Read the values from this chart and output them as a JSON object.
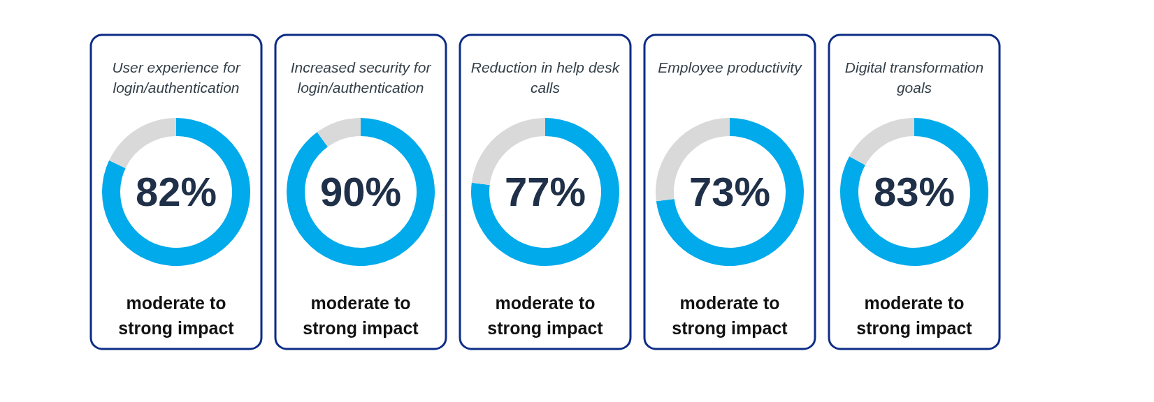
{
  "chart_data": [
    {
      "type": "donut",
      "title": "User experience for login/authentication",
      "categories": [
        null,
        null
      ],
      "values": [
        82,
        18
      ],
      "colors": [
        "#00aaeb",
        "#d9d9d9"
      ],
      "value_labels": [
        "82%",
        null
      ],
      "annotations": [
        "moderate to strong impact"
      ],
      "legend": false
    },
    {
      "type": "donut",
      "title": "Increased security for login/authentication",
      "categories": [
        null,
        null
      ],
      "values": [
        90,
        10
      ],
      "colors": [
        "#00aaeb",
        "#d9d9d9"
      ],
      "value_labels": [
        "90%",
        null
      ],
      "annotations": [
        "moderate to strong impact"
      ],
      "legend": false
    },
    {
      "type": "donut",
      "title": "Reduction in help desk calls",
      "categories": [
        null,
        null
      ],
      "values": [
        77,
        23
      ],
      "colors": [
        "#00aaeb",
        "#d9d9d9"
      ],
      "value_labels": [
        "77%",
        null
      ],
      "annotations": [
        "moderate to strong impact"
      ],
      "legend": false
    },
    {
      "type": "donut",
      "title": "Employee productivity",
      "categories": [
        null,
        null
      ],
      "values": [
        73,
        27
      ],
      "colors": [
        "#00aaeb",
        "#d9d9d9"
      ],
      "value_labels": [
        "73%",
        null
      ],
      "annotations": [
        "moderate to strong impact"
      ],
      "legend": false
    },
    {
      "type": "donut",
      "title": "Digital transformation goals",
      "categories": [
        null,
        null
      ],
      "values": [
        83,
        17
      ],
      "colors": [
        "#00aaeb",
        "#d9d9d9"
      ],
      "value_labels": [
        "83%",
        null
      ],
      "annotations": [
        "moderate to strong impact"
      ],
      "legend": false
    }
  ]
}
